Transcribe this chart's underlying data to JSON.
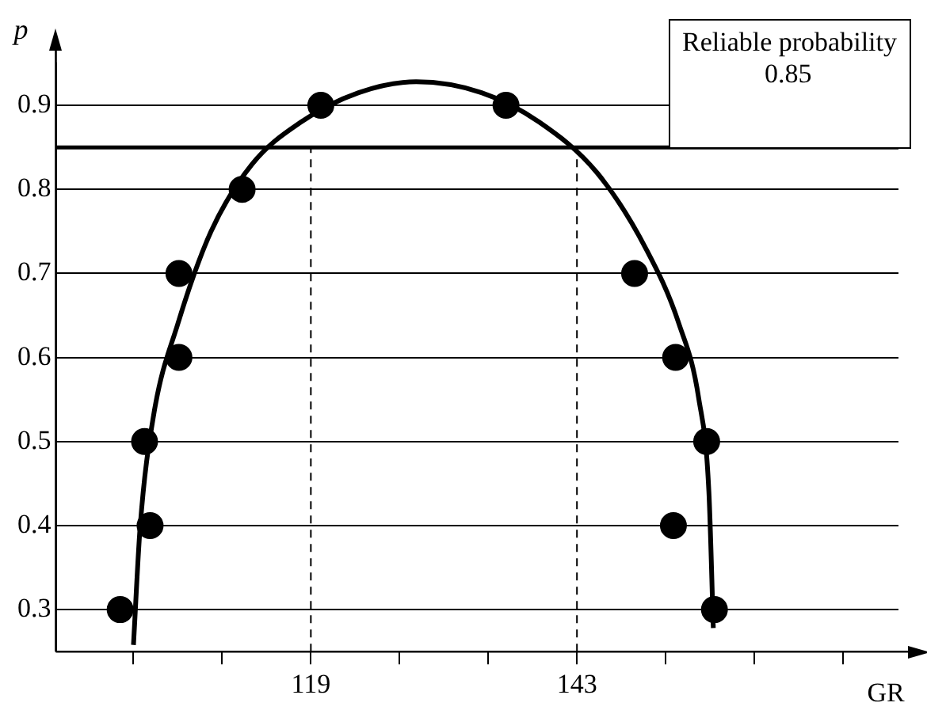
{
  "chart_data": {
    "type": "scatter",
    "xlabel": "GR",
    "ylabel": "p",
    "xlim": [
      96,
      172
    ],
    "ylim": [
      0.25,
      0.95
    ],
    "xticks": [
      {
        "value": 103,
        "label": null
      },
      {
        "value": 111,
        "label": null
      },
      119,
      {
        "value": 127,
        "label": null
      },
      {
        "value": 135,
        "label": null
      },
      143,
      {
        "value": 151,
        "label": null
      },
      {
        "value": 159,
        "label": null
      },
      {
        "value": 167,
        "label": null
      }
    ],
    "yticks": [
      0.3,
      0.4,
      0.5,
      0.6,
      0.7,
      0.8,
      0.9
    ],
    "grid": "y",
    "legend": false,
    "marker": "circle",
    "series": [
      {
        "color": "#000000",
        "x": [
          101.8,
          104.5,
          104.0,
          107.1,
          107.1,
          112.8,
          119.9,
          136.6,
          148.2,
          151.9,
          154.7,
          151.7,
          155.4
        ],
        "values": [
          0.3,
          0.4,
          0.5,
          0.6,
          0.7,
          0.8,
          0.9,
          0.9,
          0.7,
          0.6,
          0.5,
          0.4,
          0.3
        ]
      },
      {
        "type": "line",
        "color": "#000000",
        "marker": "none",
        "x": [
          103.0,
          103.6,
          104.8,
          107.0,
          110.0,
          113.7,
          118.1,
          123.3,
          128.5,
          134.4,
          139.6,
          144.8,
          149.2,
          152.2,
          154.0,
          154.9,
          155.3
        ],
        "values": [
          0.258,
          0.398,
          0.53,
          0.64,
          0.75,
          0.83,
          0.88,
          0.915,
          0.928,
          0.915,
          0.88,
          0.82,
          0.73,
          0.64,
          0.55,
          0.44,
          0.278
        ]
      }
    ],
    "ref_lines": [
      {
        "axis": "y",
        "value": 0.85,
        "label": "Reliable probability\n0.85",
        "color": "#000000",
        "line_style": "solid"
      },
      {
        "axis": "x",
        "value": 119,
        "color": "#000000",
        "line_style": "dashed"
      },
      {
        "axis": "x",
        "value": 143,
        "color": "#000000",
        "line_style": "dashed"
      }
    ]
  }
}
